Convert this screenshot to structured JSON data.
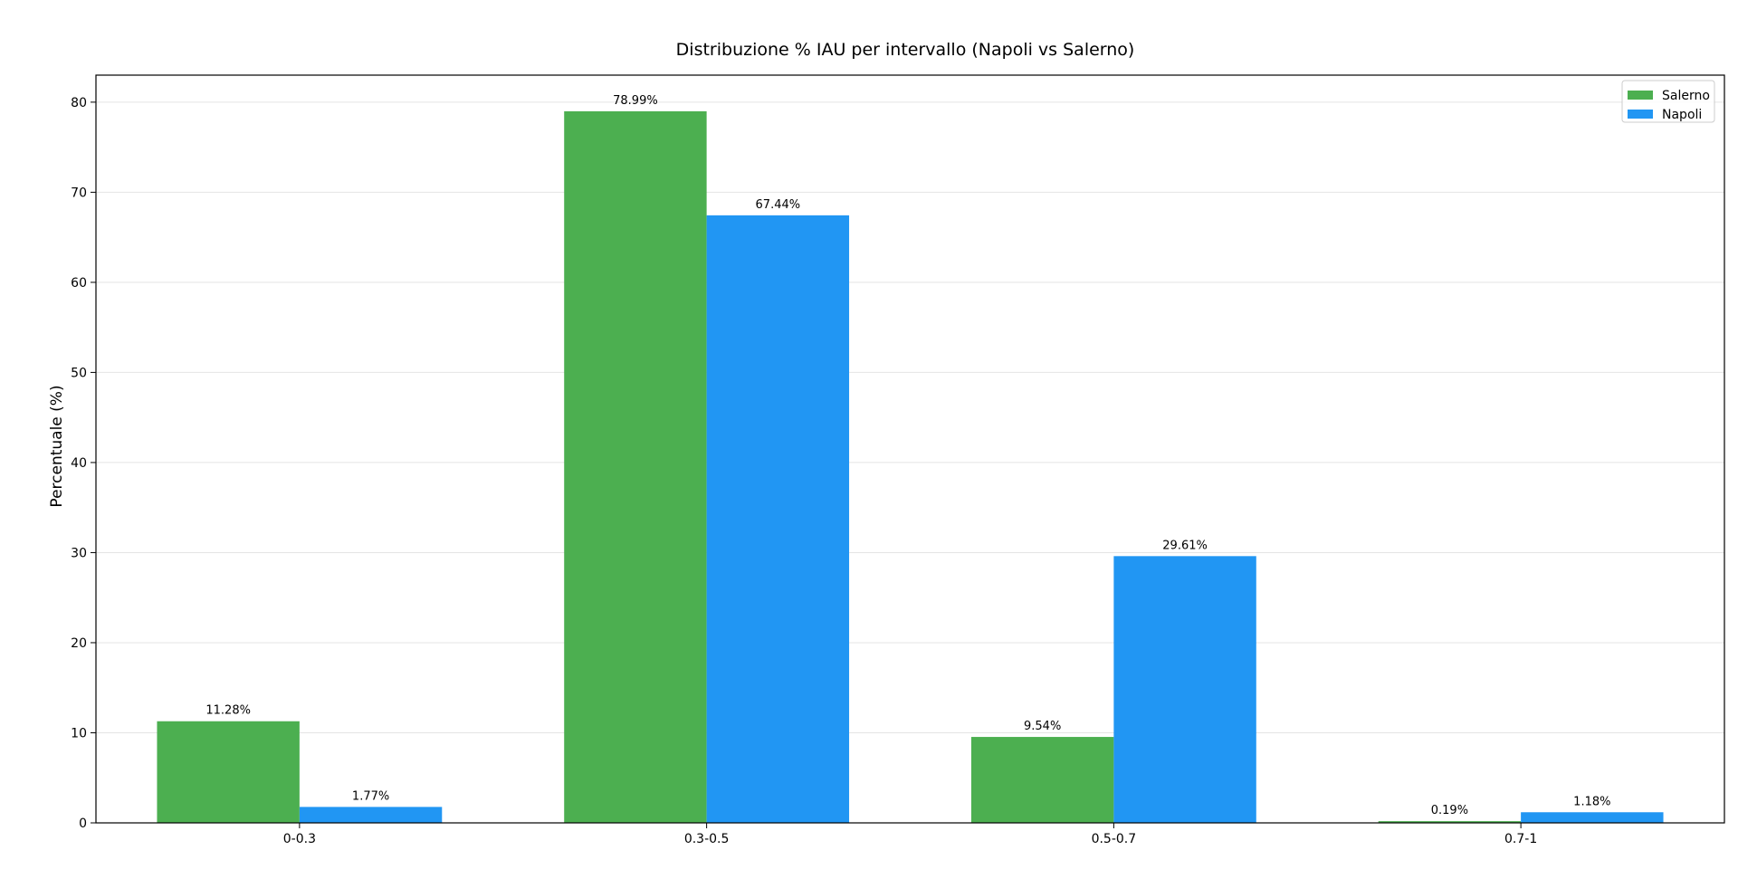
{
  "chart_data": {
    "type": "bar",
    "title": "Distribuzione % IAU per intervallo (Napoli vs Salerno)",
    "xlabel": "",
    "ylabel": "Percentuale (%)",
    "categories": [
      "0-0.3",
      "0.3-0.5",
      "0.5-0.7",
      "0.7-1"
    ],
    "series": [
      {
        "name": "Salerno",
        "color": "#4caf50",
        "values": [
          11.28,
          78.99,
          9.54,
          0.19
        ],
        "labels": [
          "11.28%",
          "78.99%",
          "9.54%",
          "0.19%"
        ]
      },
      {
        "name": "Napoli",
        "color": "#2196f3",
        "values": [
          1.77,
          67.44,
          29.61,
          1.18
        ],
        "labels": [
          "1.77%",
          "67.44%",
          "29.61%",
          "1.18%"
        ]
      }
    ],
    "ylim": [
      0,
      83
    ],
    "yticks": [
      0,
      10,
      20,
      30,
      40,
      50,
      60,
      70,
      80
    ],
    "grid": "y",
    "legend_position": "top-right"
  }
}
